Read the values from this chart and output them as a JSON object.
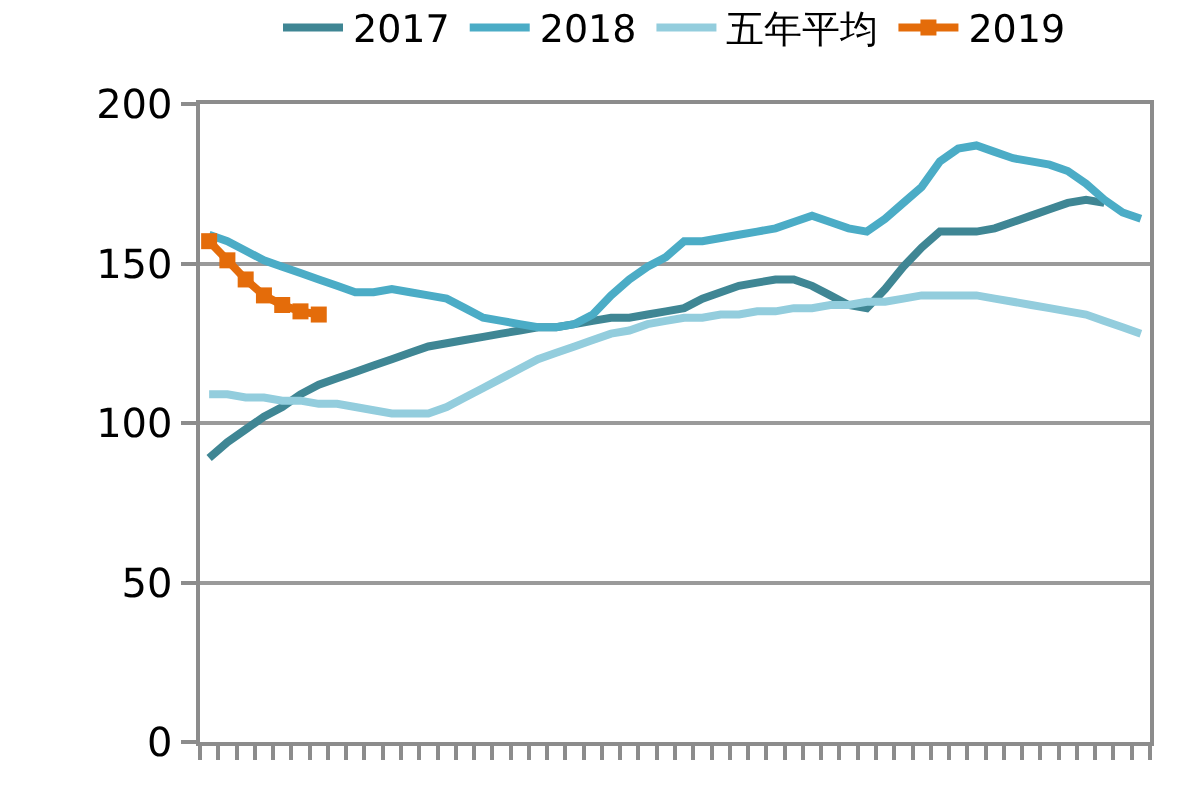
{
  "chart_data": {
    "type": "line",
    "categories": [
      null,
      null,
      null,
      null,
      null,
      null,
      null,
      null,
      null,
      null,
      null,
      null,
      null,
      null,
      null,
      null,
      null,
      null,
      null,
      null,
      null,
      null,
      null,
      null,
      null,
      null,
      null,
      null,
      null,
      null,
      null,
      null,
      null,
      null,
      null,
      null,
      null,
      null,
      null,
      null,
      null,
      null,
      null,
      null,
      null,
      null,
      null,
      null,
      null,
      null,
      null,
      null
    ],
    "series": [
      {
        "name": "2017",
        "color": "#3f8694",
        "values": [
          89,
          94,
          98,
          102,
          105,
          109,
          112,
          114,
          116,
          118,
          120,
          122,
          124,
          125,
          126,
          127,
          128,
          129,
          130,
          130,
          131,
          132,
          133,
          133,
          134,
          135,
          136,
          139,
          141,
          143,
          144,
          145,
          145,
          143,
          140,
          137,
          136,
          142,
          149,
          155,
          160,
          160,
          160,
          161,
          163,
          165,
          167,
          169,
          170,
          169,
          null,
          null
        ]
      },
      {
        "name": "2018",
        "color": "#4bacc6",
        "values": [
          159,
          157,
          154,
          151,
          149,
          147,
          145,
          143,
          141,
          141,
          142,
          141,
          140,
          139,
          136,
          133,
          132,
          131,
          130,
          130,
          131,
          134,
          140,
          145,
          149,
          152,
          157,
          157,
          158,
          159,
          160,
          161,
          163,
          165,
          163,
          161,
          160,
          164,
          169,
          174,
          182,
          186,
          187,
          185,
          183,
          182,
          181,
          179,
          175,
          170,
          166,
          164
        ]
      },
      {
        "name": "五年平均",
        "color": "#93cddd",
        "values": [
          109,
          109,
          108,
          108,
          107,
          107,
          106,
          106,
          105,
          104,
          103,
          103,
          103,
          105,
          108,
          111,
          114,
          117,
          120,
          122,
          124,
          126,
          128,
          129,
          131,
          132,
          133,
          133,
          134,
          134,
          135,
          135,
          136,
          136,
          137,
          137,
          138,
          138,
          139,
          140,
          140,
          140,
          140,
          139,
          138,
          137,
          136,
          135,
          134,
          132,
          130,
          128
        ]
      },
      {
        "name": "2019",
        "color": "#e46c0a",
        "marker": "square",
        "values": [
          157,
          151,
          145,
          140,
          137,
          135,
          134,
          null,
          null,
          null,
          null,
          null,
          null,
          null,
          null,
          null,
          null,
          null,
          null,
          null,
          null,
          null,
          null,
          null,
          null,
          null,
          null,
          null,
          null,
          null,
          null,
          null,
          null,
          null,
          null,
          null,
          null,
          null,
          null,
          null,
          null,
          null,
          null,
          null,
          null,
          null,
          null,
          null,
          null,
          null,
          null,
          null
        ]
      }
    ],
    "ylim": [
      0,
      200
    ],
    "yticks": [
      0,
      50,
      100,
      150,
      200
    ],
    "grid": "y",
    "legend": "top",
    "tick_labels": "y",
    "line_style": "solid"
  }
}
